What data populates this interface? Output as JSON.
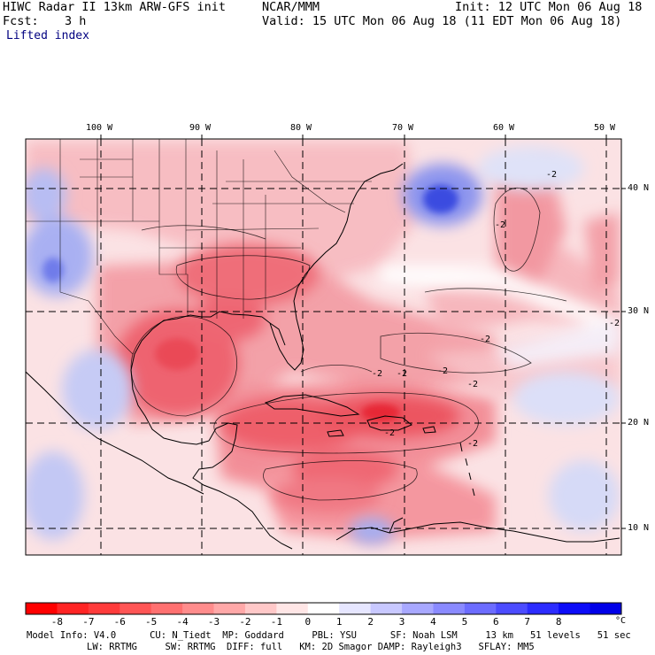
{
  "header": {
    "title_left": "HIWC Radar II 13km ARW-GFS init",
    "org": "NCAR/MMM",
    "init": "Init: 12 UTC Mon 06 Aug 18",
    "fcst_label": "Fcst:",
    "fcst_value": "3 h",
    "valid": "Valid: 15 UTC Mon 06 Aug 18 (11 EDT Mon 06 Aug 18)",
    "field": "Lifted index"
  },
  "map": {
    "lon_labels": [
      "100 W",
      "90 W",
      "80 W",
      "70 W",
      "60 W",
      "50 W"
    ],
    "lat_labels": [
      "40 N",
      "30 N",
      "20 N",
      "10 N"
    ],
    "contour_labels": [
      "-2",
      "-2",
      "-2",
      "-2",
      "-2",
      "-2",
      "-2",
      "-2",
      "-2",
      "-2"
    ],
    "colors": {
      "warm": "#ff2020",
      "cold": "#2030e0",
      "neutral": "#ffffff"
    }
  },
  "colorbar": {
    "ticks": [
      "-8",
      "-7",
      "-6",
      "-5",
      "-4",
      "-3",
      "-2",
      "-1",
      "0",
      "1",
      "2",
      "3",
      "4",
      "5",
      "6",
      "7",
      "8"
    ],
    "unit": "°C",
    "colors": [
      "#ff0000",
      "#ff2424",
      "#ff3b3b",
      "#ff5555",
      "#ff7070",
      "#ff8c8c",
      "#ffa8a8",
      "#ffc8c8",
      "#ffe6e6",
      "#ffffff",
      "#e6e6ff",
      "#c8c8ff",
      "#a8a8ff",
      "#8a8aff",
      "#6c6cff",
      "#4c4cff",
      "#2c2cff",
      "#0c0cf8",
      "#0000e8"
    ]
  },
  "footer": {
    "line1": "Model Info: V4.0      CU: N_Tiedt  MP: Goddard     PBL: YSU      SF: Noah LSM     13 km   51 levels   51 sec",
    "line2": "LW: RRTMG     SW: RRTMG  DIFF: full   KM: 2D Smagor DAMP: Rayleigh3   SFLAY: MM5"
  }
}
